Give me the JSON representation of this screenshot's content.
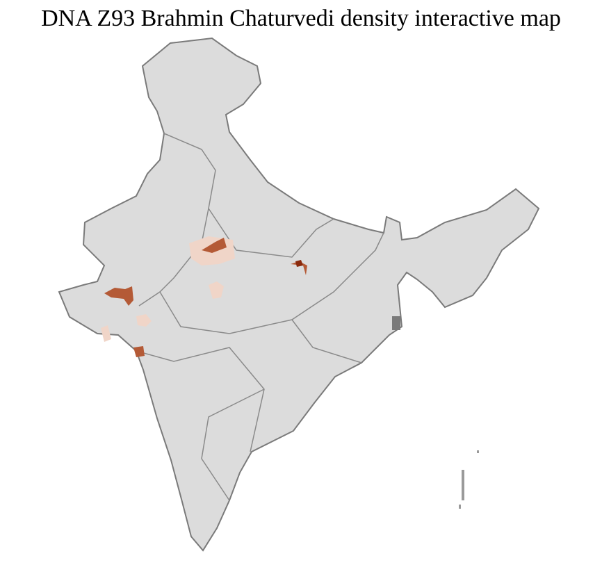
{
  "title": "DNA Z93 Brahmin Chaturvedi density interactive map",
  "colors": {
    "land": "#dcdcdc",
    "border": "#7a7a7a",
    "district_border": "#ffffff",
    "density_low": "#f0d5c8",
    "density_mid": "#b45a36",
    "density_high": "#8a2a0c"
  }
}
